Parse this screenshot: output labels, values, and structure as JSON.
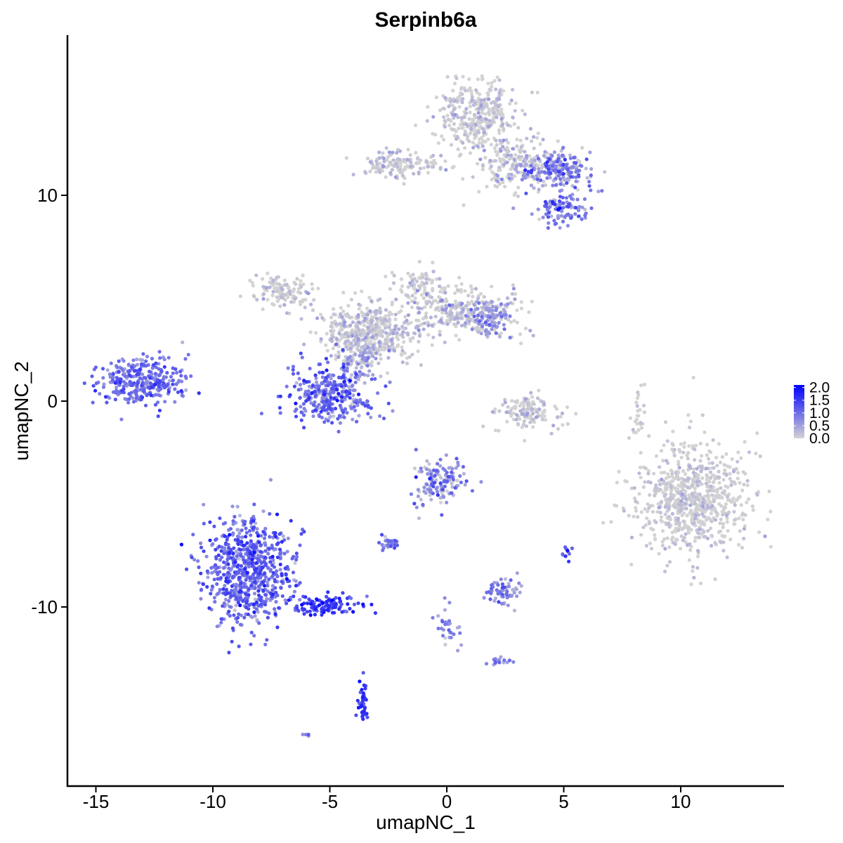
{
  "chart_data": {
    "type": "scatter",
    "title": "Serpinb6a",
    "xlabel": "umapNC_1",
    "ylabel": "umapNC_2",
    "xlim": [
      -16.5,
      14.5
    ],
    "ylim": [
      -18.5,
      17.7
    ],
    "x_ticks": [
      -15,
      -10,
      -5,
      0,
      5,
      10
    ],
    "x_tick_labels": [
      "-15",
      "-10",
      "-5",
      "0",
      "5",
      "10"
    ],
    "y_ticks": [
      -10,
      0,
      10
    ],
    "y_tick_labels": [
      "-10",
      "0",
      "10"
    ],
    "color_scale": {
      "low_color": "#d3d3d3",
      "high_color": "#0000ff",
      "min": 0.0,
      "max": 2.1,
      "breaks": [
        0.0,
        0.5,
        1.0,
        1.5,
        2.0
      ],
      "break_labels": [
        "0.0",
        "0.5",
        "1.0",
        "1.5",
        "2.0"
      ]
    },
    "legend_placement": "right",
    "grid": false,
    "clusters": [
      {
        "id": "left-cluster",
        "cx": -13.0,
        "cy": 1.0,
        "sx": 0.9,
        "sy": 0.6,
        "n": 320,
        "expr_mean": 0.95,
        "expr_sd": 0.3
      },
      {
        "id": "lower-left-main",
        "cx": -8.5,
        "cy": -8.2,
        "sx": 0.9,
        "sy": 1.3,
        "n": 700,
        "expr_mean": 1.0,
        "expr_sd": 0.35
      },
      {
        "id": "lower-left-tail",
        "cx": -5.2,
        "cy": -9.9,
        "sx": 0.8,
        "sy": 0.25,
        "n": 110,
        "expr_mean": 1.4,
        "expr_sd": 0.3
      },
      {
        "id": "small-column",
        "cx": -3.6,
        "cy": -14.6,
        "sx": 0.12,
        "sy": 0.5,
        "n": 40,
        "expr_mean": 1.5,
        "expr_sd": 0.25
      },
      {
        "id": "center-hub",
        "cx": -3.3,
        "cy": 3.4,
        "sx": 1.0,
        "sy": 0.7,
        "n": 480,
        "expr_mean": 0.1,
        "expr_sd": 0.2
      },
      {
        "id": "center-arm-left",
        "cx": -7.0,
        "cy": 5.3,
        "sx": 0.6,
        "sy": 0.4,
        "n": 120,
        "expr_mean": 0.1,
        "expr_sd": 0.2
      },
      {
        "id": "center-arm-right",
        "cx": 0.8,
        "cy": 4.3,
        "sx": 1.1,
        "sy": 0.6,
        "n": 260,
        "expr_mean": 0.15,
        "expr_sd": 0.25
      },
      {
        "id": "center-arm-right-tip",
        "cx": 1.9,
        "cy": 4.0,
        "sx": 0.4,
        "sy": 0.45,
        "n": 90,
        "expr_mean": 0.5,
        "expr_sd": 0.35
      },
      {
        "id": "center-top",
        "cx": -1.1,
        "cy": 5.6,
        "sx": 0.5,
        "sy": 0.5,
        "n": 80,
        "expr_mean": 0.05,
        "expr_sd": 0.15
      },
      {
        "id": "center-lower",
        "cx": -5.0,
        "cy": 0.3,
        "sx": 0.9,
        "sy": 0.7,
        "n": 330,
        "expr_mean": 0.95,
        "expr_sd": 0.35
      },
      {
        "id": "center-stem",
        "cx": -3.8,
        "cy": 2.0,
        "sx": 0.45,
        "sy": 0.5,
        "n": 80,
        "expr_mean": 0.3,
        "expr_sd": 0.3
      },
      {
        "id": "top-main",
        "cx": 1.3,
        "cy": 14.0,
        "sx": 0.8,
        "sy": 0.8,
        "n": 330,
        "expr_mean": 0.1,
        "expr_sd": 0.2
      },
      {
        "id": "top-right",
        "cx": 4.7,
        "cy": 11.3,
        "sx": 0.7,
        "sy": 0.5,
        "n": 200,
        "expr_mean": 0.7,
        "expr_sd": 0.45
      },
      {
        "id": "top-right-lower",
        "cx": 4.9,
        "cy": 9.3,
        "sx": 0.6,
        "sy": 0.4,
        "n": 110,
        "expr_mean": 0.8,
        "expr_sd": 0.4
      },
      {
        "id": "top-left-arm",
        "cx": -2.0,
        "cy": 11.5,
        "sx": 0.8,
        "sy": 0.35,
        "n": 140,
        "expr_mean": 0.1,
        "expr_sd": 0.2
      },
      {
        "id": "top-mid",
        "cx": 2.8,
        "cy": 11.6,
        "sx": 0.9,
        "sy": 0.7,
        "n": 180,
        "expr_mean": 0.15,
        "expr_sd": 0.25
      },
      {
        "id": "right-cluster",
        "cx": 10.5,
        "cy": -4.7,
        "sx": 1.15,
        "sy": 1.4,
        "n": 750,
        "expr_mean": 0.05,
        "expr_sd": 0.15
      },
      {
        "id": "mid-crescent",
        "cx": 3.5,
        "cy": -0.5,
        "sx": 0.7,
        "sy": 0.45,
        "n": 140,
        "expr_mean": 0.1,
        "expr_sd": 0.2
      },
      {
        "id": "mid-lower",
        "cx": -0.3,
        "cy": -3.9,
        "sx": 0.55,
        "sy": 0.6,
        "n": 140,
        "expr_mean": 0.65,
        "expr_sd": 0.4
      },
      {
        "id": "mid-lower-small",
        "cx": 2.4,
        "cy": -9.3,
        "sx": 0.4,
        "sy": 0.35,
        "n": 60,
        "expr_mean": 0.75,
        "expr_sd": 0.35
      },
      {
        "id": "mid-lower-left",
        "cx": -2.5,
        "cy": -6.9,
        "sx": 0.3,
        "sy": 0.15,
        "n": 30,
        "expr_mean": 0.9,
        "expr_sd": 0.3
      },
      {
        "id": "mid-strand",
        "cx": 0.0,
        "cy": -11.0,
        "sx": 0.25,
        "sy": 0.6,
        "n": 30,
        "expr_mean": 0.8,
        "expr_sd": 0.3
      },
      {
        "id": "small-right",
        "cx": 5.1,
        "cy": -7.3,
        "sx": 0.1,
        "sy": 0.2,
        "n": 12,
        "expr_mean": 1.2,
        "expr_sd": 0.3
      },
      {
        "id": "thin-strand",
        "cx": 8.2,
        "cy": -0.4,
        "sx": 0.15,
        "sy": 0.7,
        "n": 25,
        "expr_mean": 0.0,
        "expr_sd": 0.1
      },
      {
        "id": "lower-right-strand",
        "cx": 2.3,
        "cy": -12.6,
        "sx": 0.35,
        "sy": 0.12,
        "n": 15,
        "expr_mean": 0.8,
        "expr_sd": 0.3
      },
      {
        "id": "isolated-bottom",
        "cx": -6.0,
        "cy": -16.2,
        "sx": 0.08,
        "sy": 0.06,
        "n": 4,
        "expr_mean": 0.9,
        "expr_sd": 0.2
      }
    ]
  }
}
